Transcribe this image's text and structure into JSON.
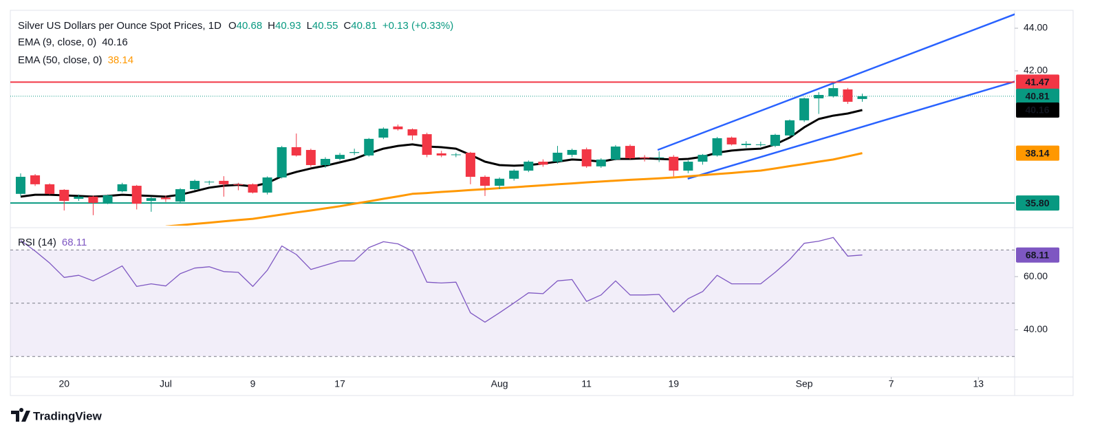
{
  "chart_data": [
    {
      "type": "candlestick",
      "title": "Silver US Dollars per Ounce Spot Prices, 1D",
      "ohlc_labels": {
        "open": "O",
        "high": "H",
        "low": "L",
        "close": "C"
      },
      "change_label": "+0.13 (+0.33%)",
      "categories": [
        null,
        null,
        null,
        "20",
        null,
        null,
        null,
        null,
        null,
        null,
        "Jul",
        null,
        null,
        null,
        null,
        null,
        "9",
        null,
        null,
        null,
        null,
        null,
        "17",
        null,
        null,
        null,
        null,
        null,
        null,
        null,
        null,
        null,
        null,
        "Aug",
        null,
        null,
        null,
        null,
        null,
        "11",
        null,
        null,
        null,
        null,
        null,
        "19",
        null,
        null,
        null,
        null,
        null,
        null,
        null,
        null,
        "Sep",
        null,
        null,
        null,
        null
      ],
      "xlim": [
        -0.71,
        68.5
      ],
      "xticks": [
        {
          "value": 60,
          "label": "7"
        },
        {
          "value": 66,
          "label": "13"
        }
      ],
      "open": [
        36.23,
        37.1,
        36.68,
        36.42,
        36.0,
        36.1,
        35.77,
        36.35,
        36.61,
        35.9,
        36.05,
        35.87,
        36.45,
        36.77,
        36.84,
        36.68,
        36.68,
        36.29,
        37.0,
        38.42,
        38.29,
        37.58,
        37.87,
        38.15,
        38.03,
        38.87,
        39.39,
        39.26,
        39.03,
        38.13,
        38.06,
        38.16,
        37.03,
        36.61,
        36.94,
        37.32,
        37.74,
        37.74,
        38.06,
        38.32,
        37.52,
        37.84,
        38.48,
        37.94,
        37.92,
        37.97,
        37.32,
        37.74,
        38.03,
        38.87,
        38.52,
        38.55,
        38.48,
        38.97,
        39.68,
        40.71,
        40.81,
        41.13,
        40.68
      ],
      "high": [
        37.19,
        37.16,
        36.72,
        36.45,
        36.2,
        36.15,
        36.2,
        36.75,
        36.65,
        36.1,
        36.15,
        36.5,
        36.9,
        36.85,
        37.06,
        36.75,
        36.72,
        37.05,
        38.48,
        39.06,
        38.35,
        37.95,
        38.15,
        38.35,
        38.85,
        39.35,
        39.48,
        39.3,
        39.1,
        38.25,
        38.15,
        38.2,
        37.1,
        37.0,
        37.38,
        37.8,
        37.85,
        38.48,
        38.35,
        38.4,
        37.9,
        38.52,
        38.55,
        38.05,
        38.22,
        38.05,
        37.8,
        38.1,
        38.9,
        38.92,
        38.7,
        38.68,
        39.05,
        39.72,
        40.75,
        41.0,
        41.42,
        41.2,
        40.93
      ],
      "low": [
        36.13,
        36.6,
        36.2,
        35.45,
        35.9,
        35.23,
        35.75,
        36.3,
        35.5,
        35.39,
        35.85,
        35.8,
        36.4,
        36.65,
        36.1,
        36.4,
        36.25,
        36.2,
        36.95,
        37.98,
        37.5,
        37.45,
        37.8,
        38.05,
        37.98,
        38.8,
        39.2,
        38.75,
        37.95,
        37.95,
        37.95,
        36.68,
        36.13,
        36.45,
        36.85,
        37.25,
        37.5,
        37.65,
        37.95,
        37.45,
        37.45,
        37.8,
        37.85,
        37.75,
        37.72,
        37.05,
        37.2,
        37.6,
        37.98,
        38.5,
        38.4,
        38.45,
        38.42,
        38.9,
        39.6,
        39.98,
        40.75,
        40.45,
        40.55
      ],
      "close": [
        37.03,
        36.68,
        36.23,
        35.9,
        36.1,
        35.81,
        36.16,
        36.68,
        35.77,
        36.03,
        35.98,
        36.45,
        36.84,
        36.8,
        36.68,
        36.65,
        36.29,
        37.0,
        38.42,
        38.03,
        37.58,
        37.87,
        38.06,
        38.19,
        38.81,
        39.29,
        39.26,
        38.97,
        38.06,
        38.03,
        38.08,
        37.03,
        36.61,
        36.94,
        37.32,
        37.74,
        37.6,
        38.16,
        38.29,
        37.52,
        37.84,
        38.45,
        37.9,
        37.9,
        37.94,
        37.32,
        37.74,
        38.06,
        38.84,
        38.55,
        38.58,
        38.55,
        39.0,
        39.68,
        40.71,
        40.87,
        41.19,
        40.55,
        40.81
      ],
      "up_color": "#089981",
      "down_color": "#f23645",
      "series": [
        {
          "name": "EMA (9, close, 0)",
          "color": "#000000",
          "values": [
            36.1,
            36.19,
            36.19,
            36.16,
            36.13,
            36.1,
            36.13,
            36.19,
            36.16,
            36.13,
            36.1,
            36.19,
            36.35,
            36.52,
            36.61,
            36.65,
            36.58,
            36.74,
            37.06,
            37.26,
            37.42,
            37.55,
            37.71,
            37.87,
            38.13,
            38.35,
            38.48,
            38.55,
            38.45,
            38.42,
            38.35,
            38.06,
            37.74,
            37.58,
            37.55,
            37.58,
            37.65,
            37.74,
            37.84,
            37.81,
            37.74,
            37.87,
            37.87,
            37.9,
            37.87,
            37.84,
            37.87,
            37.97,
            38.16,
            38.26,
            38.32,
            38.35,
            38.55,
            38.87,
            39.35,
            39.74,
            39.9,
            40.0,
            40.16
          ]
        },
        {
          "name": "EMA (50, close, 0)",
          "color": "#ff9800",
          "values": [
            null,
            null,
            null,
            null,
            null,
            null,
            null,
            null,
            null,
            null,
            34.7,
            34.76,
            34.82,
            34.88,
            34.94,
            35.0,
            35.06,
            35.16,
            35.26,
            35.36,
            35.45,
            35.55,
            35.65,
            35.77,
            35.88,
            36.0,
            36.11,
            36.23,
            36.27,
            36.32,
            36.36,
            36.41,
            36.45,
            36.5,
            36.54,
            36.59,
            36.63,
            36.68,
            36.72,
            36.77,
            36.81,
            36.85,
            36.89,
            36.92,
            36.96,
            37.0,
            37.05,
            37.11,
            37.16,
            37.21,
            37.27,
            37.32,
            37.42,
            37.53,
            37.63,
            37.74,
            37.84,
            37.99,
            38.14
          ]
        }
      ],
      "hlines": [
        {
          "value": 41.47,
          "label": "41.47",
          "color": "#f23645"
        },
        {
          "value": 35.8,
          "label": "35.80",
          "color": "#089981"
        }
      ],
      "trendlines": [
        {
          "color": "#2962ff",
          "x": [
            43.9,
            68.6
          ],
          "y": [
            38.29,
            44.68
          ]
        },
        {
          "color": "#2962ff",
          "x": [
            45.97,
            68.6
          ],
          "y": [
            36.94,
            41.52
          ]
        }
      ],
      "ylim": [
        34.74,
        44.84
      ],
      "yticks": [
        {
          "value": 42,
          "label": "42.00"
        },
        {
          "value": 44,
          "label": "44.00"
        }
      ]
    },
    {
      "type": "line",
      "series": [
        {
          "name": "RSI (14)",
          "color": "#7e57c2",
          "values": [
            73.6,
            69.6,
            65.1,
            59.7,
            60.5,
            58.4,
            61.1,
            64.0,
            56.3,
            57.3,
            56.5,
            61.1,
            63.2,
            63.7,
            61.9,
            61.6,
            56.3,
            62.4,
            71.5,
            68.3,
            62.7,
            64.3,
            65.9,
            65.9,
            70.9,
            73.1,
            72.3,
            69.6,
            57.9,
            57.6,
            57.9,
            46.4,
            42.9,
            46.4,
            50.1,
            53.9,
            53.6,
            58.4,
            58.9,
            50.7,
            53.1,
            58.4,
            53.1,
            53.1,
            53.3,
            46.7,
            51.7,
            54.4,
            60.5,
            57.3,
            57.3,
            57.3,
            61.6,
            66.4,
            72.5,
            73.3,
            74.7,
            67.7,
            68.11
          ]
        }
      ],
      "levels": [
        30,
        50,
        70
      ],
      "ylim": [
        22.3,
        77.6
      ],
      "yticks": [
        {
          "value": 40,
          "label": "40.00"
        },
        {
          "value": 60,
          "label": "60.00"
        }
      ]
    }
  ],
  "brand": "TradingView"
}
